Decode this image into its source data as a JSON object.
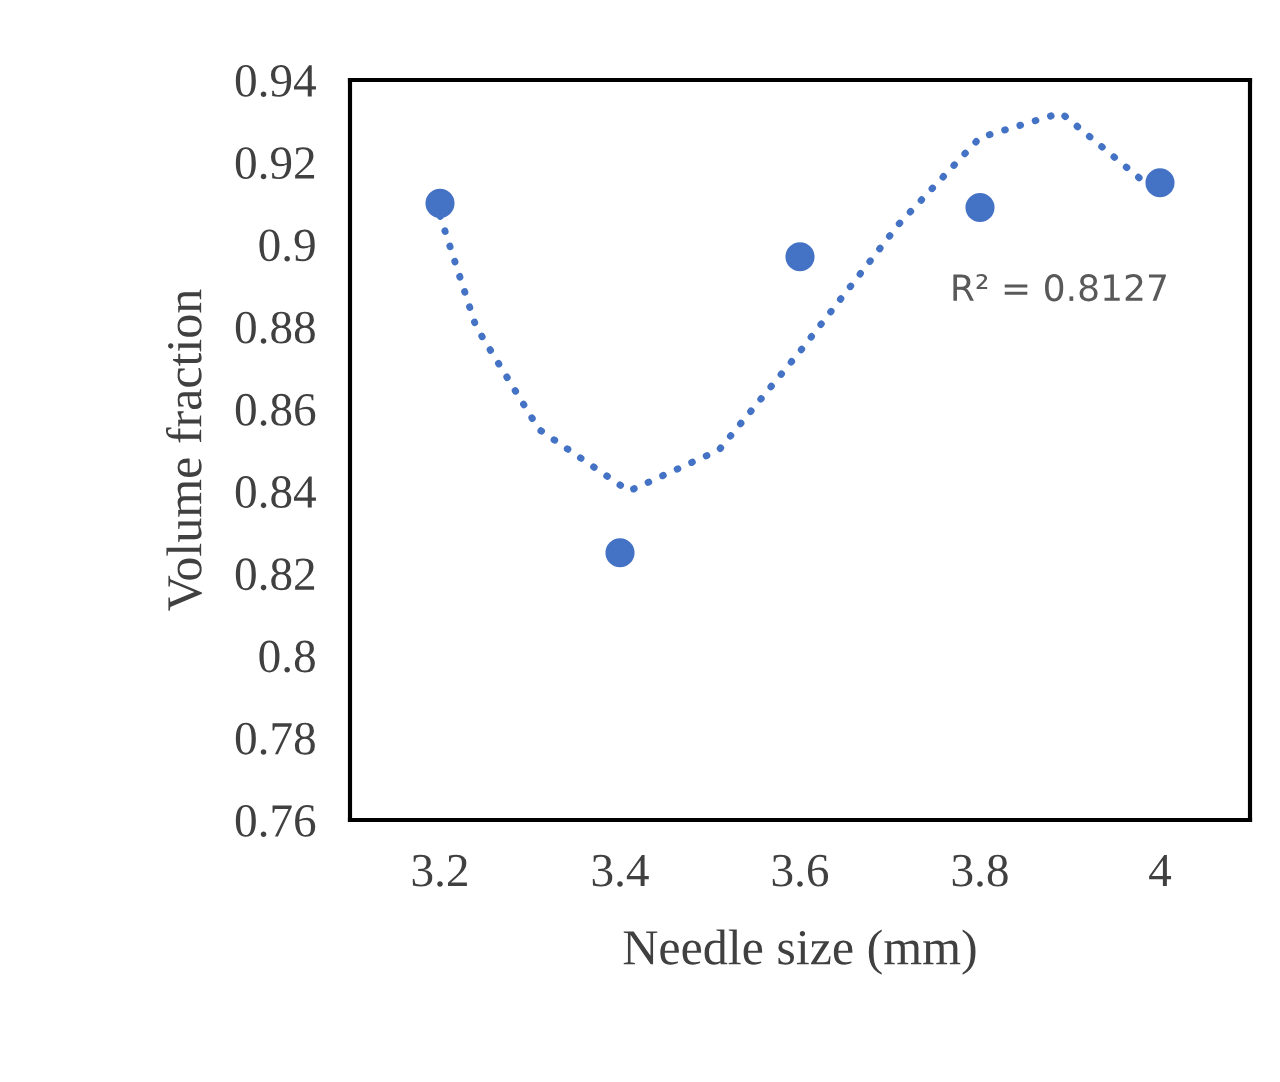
{
  "chart_data": {
    "type": "scatter",
    "xlabel": "Needle size (mm)",
    "ylabel": "Volume fraction",
    "xlim": [
      3.1,
      4.1
    ],
    "xticks": [
      3.2,
      3.4,
      3.6,
      3.8,
      {
        "value": 4,
        "label": "4"
      }
    ],
    "ylim": [
      0.76,
      0.94
    ],
    "yticks": [
      0.76,
      0.78,
      {
        "value": 0.8,
        "label": "0.8"
      },
      0.82,
      0.84,
      0.86,
      0.88,
      {
        "value": 0.9,
        "label": "0.9"
      },
      0.92,
      0.94
    ],
    "grid": false,
    "legend": false,
    "series": [
      {
        "color": "#4472c4",
        "marker": "circle",
        "x": [
          3.2,
          3.4,
          3.6,
          3.8,
          4.0
        ],
        "values": [
          0.91,
          0.825,
          0.897,
          0.909,
          0.915
        ]
      },
      {
        "type": "line",
        "color": "#4472c4",
        "line_style": "dotted",
        "marker": "none",
        "x": [
          3.2,
          3.24,
          3.31,
          3.41,
          3.51,
          3.6,
          3.71,
          3.8,
          3.89,
          4.0
        ],
        "values": [
          0.907,
          0.88,
          0.855,
          0.84,
          0.85,
          0.874,
          0.905,
          0.926,
          0.932,
          0.912
        ]
      }
    ],
    "annotations": [
      "R² = 0.8127"
    ]
  }
}
